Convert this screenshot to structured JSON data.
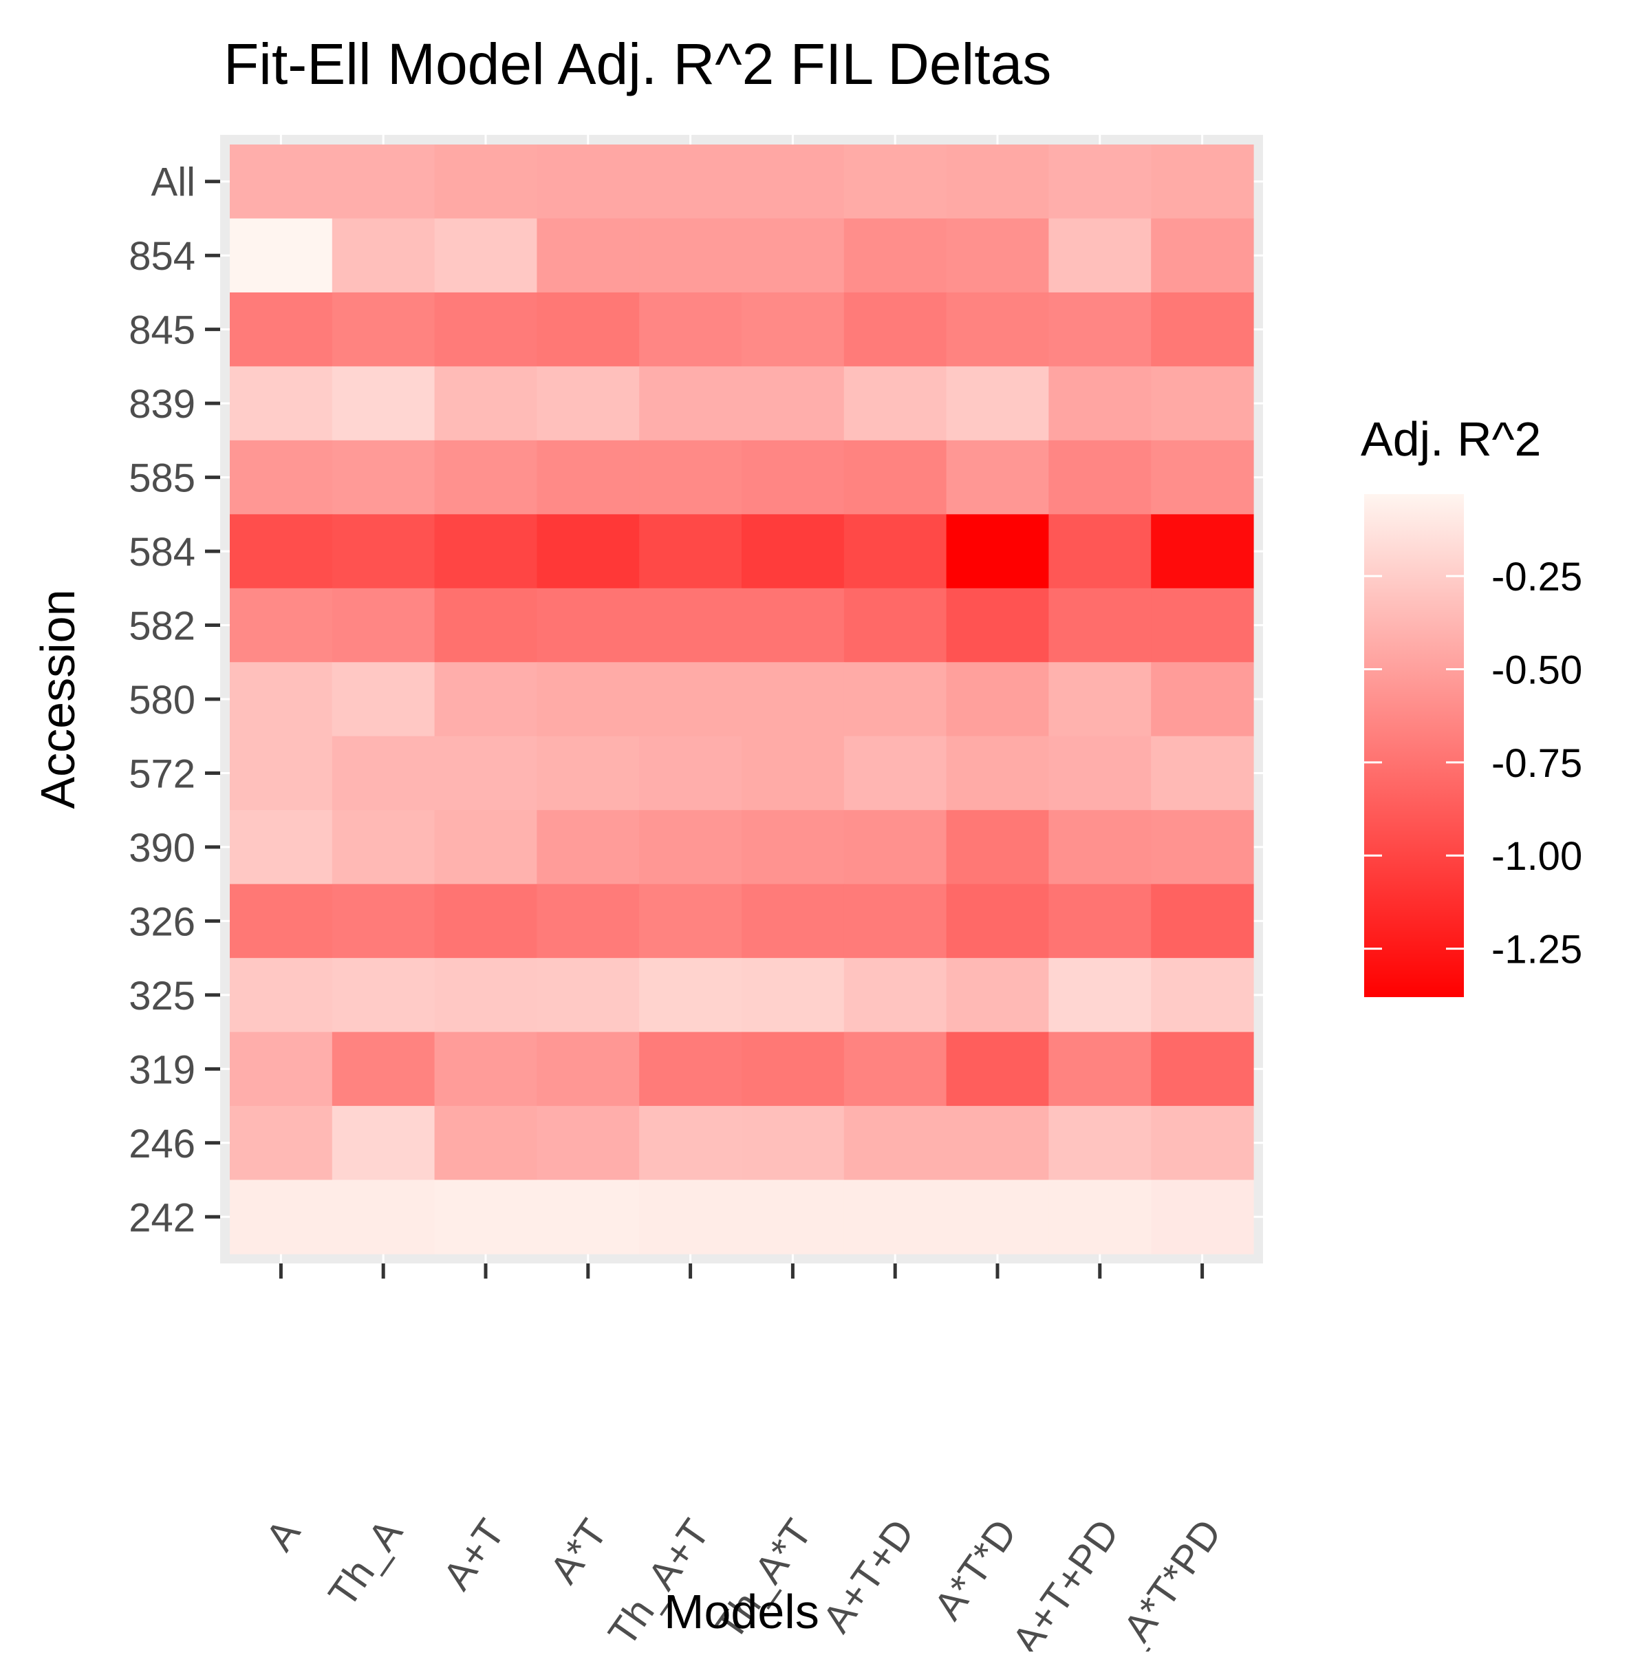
{
  "chart_data": {
    "type": "heatmap",
    "title": "Fit-Ell Model Adj. R^2 FIL Deltas",
    "xlabel": "Models",
    "ylabel": "Accession",
    "x_categories": [
      "A",
      "Th_A",
      "A+T",
      "A*T",
      "Th_A+T",
      "Th_A*T",
      "A+T+D",
      "A*T*D",
      "Th_A+T+PD",
      "Th_A*T*PD"
    ],
    "y_categories": [
      "All",
      "854",
      "845",
      "839",
      "585",
      "584",
      "582",
      "580",
      "572",
      "390",
      "326",
      "325",
      "319",
      "246",
      "242"
    ],
    "values": [
      [
        -0.42,
        -0.42,
        -0.45,
        -0.46,
        -0.46,
        -0.46,
        -0.44,
        -0.45,
        -0.42,
        -0.44
      ],
      [
        -0.03,
        -0.33,
        -0.28,
        -0.52,
        -0.52,
        -0.52,
        -0.6,
        -0.58,
        -0.33,
        -0.53
      ],
      [
        -0.7,
        -0.66,
        -0.7,
        -0.72,
        -0.64,
        -0.62,
        -0.7,
        -0.66,
        -0.64,
        -0.72
      ],
      [
        -0.25,
        -0.2,
        -0.35,
        -0.32,
        -0.42,
        -0.42,
        -0.32,
        -0.27,
        -0.47,
        -0.45
      ],
      [
        -0.55,
        -0.53,
        -0.58,
        -0.62,
        -0.62,
        -0.64,
        -0.66,
        -0.55,
        -0.64,
        -0.6
      ],
      [
        -0.95,
        -0.93,
        -1.0,
        -1.07,
        -0.98,
        -1.05,
        -0.98,
        -1.38,
        -0.9,
        -1.32
      ],
      [
        -0.62,
        -0.64,
        -0.76,
        -0.74,
        -0.74,
        -0.74,
        -0.8,
        -0.92,
        -0.78,
        -0.78
      ],
      [
        -0.32,
        -0.28,
        -0.42,
        -0.44,
        -0.44,
        -0.44,
        -0.44,
        -0.5,
        -0.4,
        -0.52
      ],
      [
        -0.32,
        -0.38,
        -0.38,
        -0.4,
        -0.42,
        -0.44,
        -0.38,
        -0.44,
        -0.42,
        -0.36
      ],
      [
        -0.28,
        -0.36,
        -0.4,
        -0.52,
        -0.55,
        -0.57,
        -0.58,
        -0.72,
        -0.58,
        -0.57
      ],
      [
        -0.72,
        -0.7,
        -0.74,
        -0.7,
        -0.66,
        -0.7,
        -0.7,
        -0.8,
        -0.74,
        -0.84
      ],
      [
        -0.28,
        -0.26,
        -0.28,
        -0.27,
        -0.22,
        -0.23,
        -0.3,
        -0.36,
        -0.2,
        -0.26
      ],
      [
        -0.42,
        -0.66,
        -0.52,
        -0.55,
        -0.7,
        -0.72,
        -0.66,
        -0.86,
        -0.66,
        -0.8
      ],
      [
        -0.36,
        -0.2,
        -0.44,
        -0.42,
        -0.32,
        -0.33,
        -0.4,
        -0.4,
        -0.3,
        -0.34
      ],
      [
        -0.08,
        -0.08,
        -0.07,
        -0.07,
        -0.08,
        -0.08,
        -0.08,
        -0.08,
        -0.08,
        -0.1
      ]
    ],
    "colorbar": {
      "title": "Adj. R^2",
      "min": -1.38,
      "max": -0.03,
      "low_color": "#ff0000",
      "high_color": "#fff5f0",
      "ticks": [
        -0.25,
        -0.5,
        -0.75,
        -1.0,
        -1.25
      ],
      "tick_labels": [
        "-0.25",
        "-0.50",
        "-0.75",
        "-1.00",
        "-1.25"
      ],
      "position": "right"
    },
    "grid": true,
    "panel_background": "#ebebeb"
  }
}
